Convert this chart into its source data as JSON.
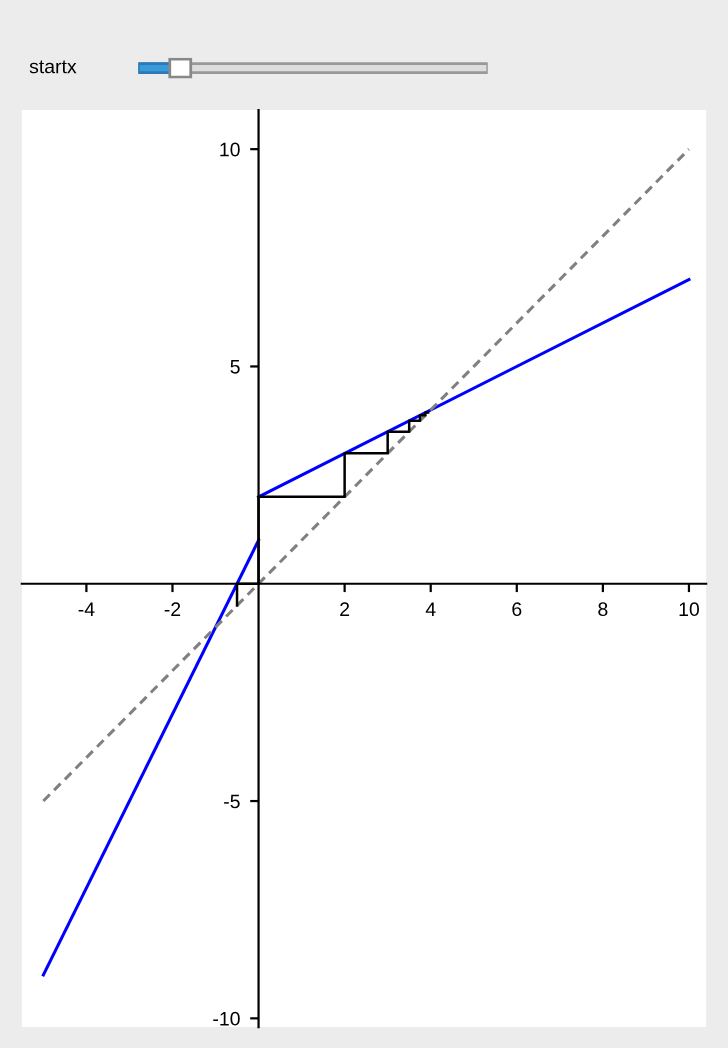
{
  "chart_data": {
    "type": "line",
    "annotations": [
      "startx"
    ],
    "series": [
      {
        "x": [
          -5,
          0
        ],
        "values": [
          -9,
          1
        ],
        "color": "#0000ff"
      },
      {
        "x": [
          0,
          10
        ],
        "values": [
          2,
          7
        ],
        "color": "#0000ff"
      },
      {
        "x": [
          -5,
          10
        ],
        "values": [
          -5,
          10
        ],
        "color": "#808080",
        "line_style": "dashed"
      },
      {
        "x": [
          -0.5,
          -0.5,
          0,
          0,
          2,
          2,
          3,
          3,
          3.5,
          3.5,
          3.75,
          3.75,
          3.875,
          3.875,
          3.94
        ],
        "values": [
          -0.5,
          0,
          0,
          2,
          2,
          3,
          3,
          3.5,
          3.5,
          3.75,
          3.75,
          3.875,
          3.875,
          3.94,
          3.94
        ],
        "color": "#000000"
      }
    ],
    "xlim": [
      -5.5,
      10.4
    ],
    "ylim": [
      -10.2,
      10.9
    ],
    "xticks": [
      -4,
      -2,
      2,
      4,
      6,
      8,
      10
    ],
    "yticks": [
      -10,
      -5,
      5,
      10
    ],
    "grid": false,
    "legend": false
  }
}
